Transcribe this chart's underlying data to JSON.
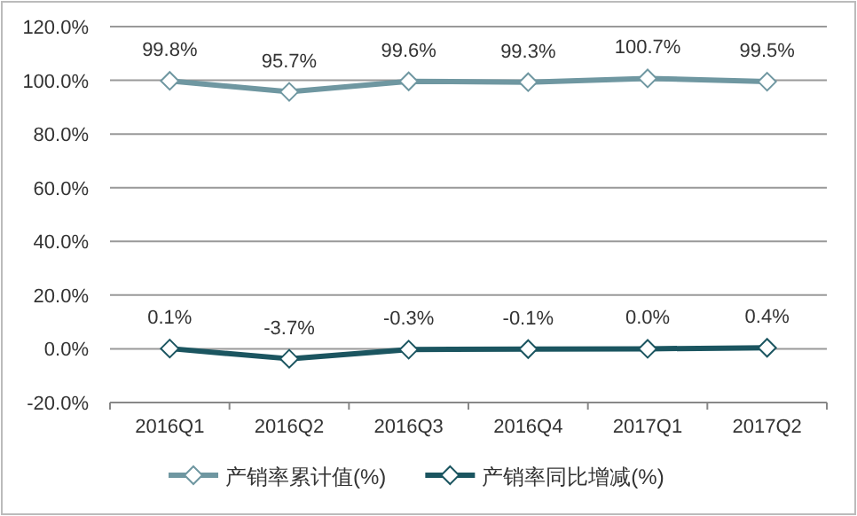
{
  "chart_data": {
    "type": "line",
    "categories": [
      "2016Q1",
      "2016Q2",
      "2016Q3",
      "2016Q4",
      "2017Q1",
      "2017Q2"
    ],
    "series": [
      {
        "name": "产销率累计值(%)",
        "color": "#6f97a1",
        "values": [
          99.8,
          95.7,
          99.6,
          99.3,
          100.7,
          99.5
        ],
        "value_labels": [
          "99.8%",
          "95.7%",
          "99.6%",
          "99.3%",
          "100.7%",
          "99.5%"
        ]
      },
      {
        "name": "产销率同比增减(%)",
        "color": "#1b5560",
        "values": [
          0.1,
          -3.7,
          -0.3,
          -0.1,
          0.0,
          0.4
        ],
        "value_labels": [
          "0.1%",
          "-3.7%",
          "-0.3%",
          "-0.1%",
          "0.0%",
          "0.4%"
        ]
      }
    ],
    "ylim": [
      -20,
      120
    ],
    "yticks": [
      {
        "value": -20,
        "label": "-20.0%"
      },
      {
        "value": 0,
        "label": "0.0%"
      },
      {
        "value": 20,
        "label": "20.0%"
      },
      {
        "value": 40,
        "label": "40.0%"
      },
      {
        "value": 60,
        "label": "60.0%"
      },
      {
        "value": 80,
        "label": "80.0%"
      },
      {
        "value": 100,
        "label": "100.0%"
      },
      {
        "value": 120,
        "label": "120.0%"
      }
    ],
    "grid": "y",
    "legend": "bottom",
    "marker": "diamond",
    "line_style": "solid"
  }
}
